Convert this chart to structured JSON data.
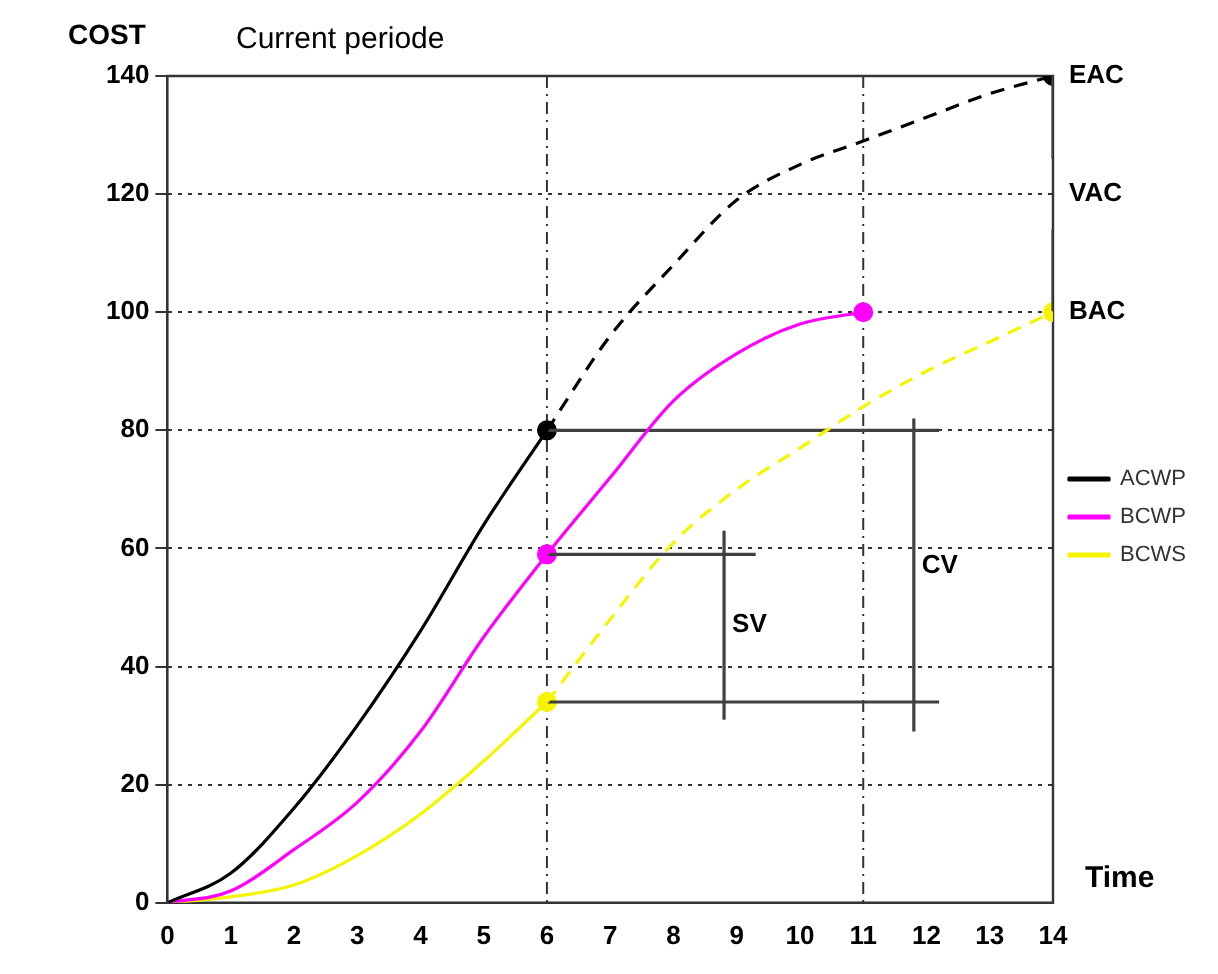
{
  "chart_data": {
    "type": "line",
    "xlabel": "Time",
    "ylabel": "COST",
    "xlim": [
      0,
      14
    ],
    "ylim": [
      0,
      140
    ],
    "xticks": [
      0,
      1,
      2,
      3,
      4,
      5,
      6,
      7,
      8,
      9,
      10,
      11,
      12,
      13,
      14
    ],
    "yticks": [
      0,
      20,
      40,
      60,
      80,
      100,
      120,
      140
    ],
    "grid": "y",
    "legend": "right",
    "series": [
      {
        "name": "ACWP",
        "color": "#000000",
        "line_style": "solid",
        "x": [
          0,
          1,
          2,
          3,
          4,
          5,
          6
        ],
        "values": [
          0,
          5,
          16,
          30,
          46,
          64,
          80
        ]
      },
      {
        "color": "#000000",
        "line_style": "dashed",
        "x": [
          6,
          7,
          8,
          9,
          10,
          11,
          12,
          13,
          14
        ],
        "values": [
          80,
          96,
          108,
          119,
          125,
          129,
          133,
          137,
          140
        ]
      },
      {
        "name": "BCWP",
        "color": "#ff00ff",
        "line_style": "solid",
        "x": [
          0,
          1,
          2,
          3,
          4,
          5,
          6,
          7,
          8,
          9,
          10,
          11
        ],
        "values": [
          0,
          2,
          9,
          17,
          29,
          45,
          59,
          72,
          85,
          93,
          98,
          100
        ]
      },
      {
        "name": "BCWS",
        "color": "#f5f500",
        "line_style": "solid",
        "x": [
          0,
          1,
          2,
          3,
          4,
          5,
          6
        ],
        "values": [
          0,
          1,
          3,
          8,
          15,
          24,
          34
        ]
      },
      {
        "color": "#f5f500",
        "line_style": "dashed",
        "x": [
          6,
          7,
          8,
          9,
          10,
          11,
          12,
          13,
          14
        ],
        "values": [
          34,
          48,
          61,
          70,
          77,
          84,
          90,
          95,
          100
        ]
      },
      {
        "color": "#404040",
        "line_style": "solid",
        "x": [
          6,
          12.2
        ],
        "values": [
          80,
          80
        ]
      },
      {
        "color": "#404040",
        "line_style": "solid",
        "x": [
          6,
          9.3
        ],
        "values": [
          59,
          59
        ]
      },
      {
        "color": "#404040",
        "line_style": "solid",
        "x": [
          6,
          12.2
        ],
        "values": [
          34,
          34
        ]
      },
      {
        "color": "#404040",
        "line_style": "solid",
        "x": [
          8.8,
          8.8
        ],
        "values": [
          31,
          63
        ]
      },
      {
        "color": "#404040",
        "line_style": "solid",
        "x": [
          11.8,
          11.8
        ],
        "values": [
          29,
          82
        ]
      },
      {
        "color": "#404040",
        "line_style": "solid",
        "x": [
          14,
          14
        ],
        "values": [
          140,
          126
        ]
      },
      {
        "color": "#404040",
        "line_style": "solid",
        "x": [
          14,
          14
        ],
        "values": [
          114,
          100
        ]
      },
      {
        "type": "scatter",
        "marker": "circle",
        "x": [
          6,
          6,
          6,
          11,
          14,
          14
        ],
        "values": [
          80,
          59,
          34,
          100,
          140,
          100
        ],
        "colors": [
          "#000000",
          "#ff00ff",
          "#f5f500",
          "#ff00ff",
          "#000000",
          "#f5f500"
        ]
      }
    ],
    "ref_lines": [
      {
        "axis": "x",
        "value": 6,
        "label": null,
        "line_style": "dashdot"
      },
      {
        "axis": "x",
        "value": 11,
        "label": null,
        "line_style": "dashdot"
      }
    ],
    "annotations": [
      "Current periode",
      {
        "text": "EAC",
        "x": 14,
        "y": 140
      },
      "VAC",
      {
        "text": "BAC",
        "x": 14,
        "y": 100
      },
      {
        "text": "SV",
        "x": 8.8,
        "y": 47
      },
      {
        "text": "CV",
        "x": 11.8,
        "y": 57
      }
    ]
  }
}
